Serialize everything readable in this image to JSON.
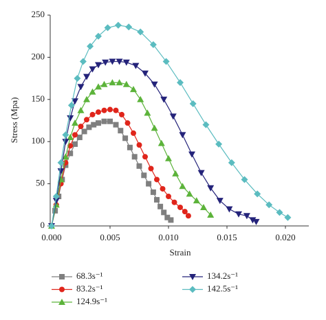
{
  "chart_data": {
    "type": "line",
    "x_label": "Strain",
    "y_label": "Stress (Mpa)",
    "xlim": [
      0,
      0.022
    ],
    "ylim": [
      0,
      250
    ],
    "xticks": [
      {
        "value": 0,
        "label": "0.000"
      },
      {
        "value": 0.005,
        "label": "0.005"
      },
      {
        "value": 0.01,
        "label": "0.010"
      },
      {
        "value": 0.015,
        "label": "0.015"
      },
      {
        "value": 0.02,
        "label": "0.020"
      }
    ],
    "yticks": [
      0,
      50,
      100,
      150,
      200,
      250
    ],
    "series": [
      {
        "name": "68.3s⁻¹",
        "color": "#7f7f7f",
        "marker": "square",
        "x": [
          0,
          0.0003,
          0.0006,
          0.0009,
          0.0012,
          0.0016,
          0.002,
          0.0024,
          0.0028,
          0.0032,
          0.0036,
          0.004,
          0.0045,
          0.005,
          0.0055,
          0.0059,
          0.0063,
          0.0067,
          0.0071,
          0.0075,
          0.0079,
          0.0083,
          0.0087,
          0.009,
          0.0093,
          0.0096,
          0.0099,
          0.0102
        ],
        "values": [
          0,
          18,
          35,
          55,
          72,
          86,
          97,
          105,
          112,
          117,
          120,
          122,
          124,
          124,
          120,
          113,
          104,
          93,
          82,
          71,
          60,
          50,
          40,
          31,
          23,
          16,
          10,
          7
        ]
      },
      {
        "name": "83.2s⁻¹",
        "color": "#e0251b",
        "marker": "circle",
        "x": [
          0,
          0.0004,
          0.0008,
          0.0012,
          0.0016,
          0.002,
          0.0025,
          0.003,
          0.0035,
          0.004,
          0.0045,
          0.005,
          0.0055,
          0.006,
          0.0065,
          0.007,
          0.0075,
          0.008,
          0.0085,
          0.009,
          0.0095,
          0.01,
          0.0105,
          0.011,
          0.0114,
          0.0117
        ],
        "values": [
          0,
          25,
          50,
          75,
          95,
          108,
          118,
          126,
          132,
          135,
          137,
          138,
          137,
          132,
          122,
          110,
          96,
          82,
          68,
          55,
          44,
          35,
          28,
          22,
          17,
          12
        ]
      },
      {
        "name": "124.9s⁻¹",
        "color": "#5cb33a",
        "marker": "triangle",
        "x": [
          0,
          0.0004,
          0.0008,
          0.0012,
          0.0016,
          0.002,
          0.0025,
          0.003,
          0.0035,
          0.004,
          0.0045,
          0.0052,
          0.0058,
          0.0064,
          0.007,
          0.0076,
          0.0082,
          0.0088,
          0.0094,
          0.01,
          0.0106,
          0.0112,
          0.0118,
          0.0124,
          0.013,
          0.0136
        ],
        "values": [
          0,
          25,
          55,
          82,
          105,
          122,
          137,
          150,
          159,
          165,
          168,
          170,
          170,
          168,
          162,
          150,
          134,
          116,
          98,
          80,
          62,
          47,
          38,
          30,
          22,
          13
        ]
      },
      {
        "name": "134.2s⁻¹",
        "color": "#24237a",
        "marker": "triangle-down",
        "x": [
          0,
          0.0004,
          0.0008,
          0.0012,
          0.0016,
          0.002,
          0.0025,
          0.003,
          0.0035,
          0.004,
          0.0046,
          0.0052,
          0.0058,
          0.0064,
          0.0072,
          0.008,
          0.0088,
          0.0096,
          0.0104,
          0.0112,
          0.012,
          0.0128,
          0.0136,
          0.0144,
          0.0152,
          0.016,
          0.0167,
          0.0172,
          0.0175
        ],
        "values": [
          0,
          30,
          65,
          100,
          128,
          148,
          165,
          177,
          186,
          191,
          194,
          195,
          195,
          194,
          190,
          181,
          168,
          150,
          130,
          108,
          85,
          63,
          45,
          30,
          20,
          14,
          12,
          7,
          5
        ]
      },
      {
        "name": "142.5s⁻¹",
        "color": "#5bbcc0",
        "marker": "diamond",
        "x": [
          0,
          0.0004,
          0.0008,
          0.0012,
          0.0017,
          0.0022,
          0.0027,
          0.0033,
          0.004,
          0.0048,
          0.0057,
          0.0066,
          0.0076,
          0.0087,
          0.0098,
          0.011,
          0.0121,
          0.0132,
          0.0143,
          0.0154,
          0.0165,
          0.0176,
          0.0186,
          0.0195,
          0.0202
        ],
        "values": [
          0,
          35,
          75,
          108,
          143,
          175,
          195,
          213,
          225,
          235,
          238,
          236,
          230,
          215,
          195,
          170,
          145,
          120,
          97,
          75,
          55,
          38,
          25,
          16,
          10
        ]
      }
    ]
  }
}
